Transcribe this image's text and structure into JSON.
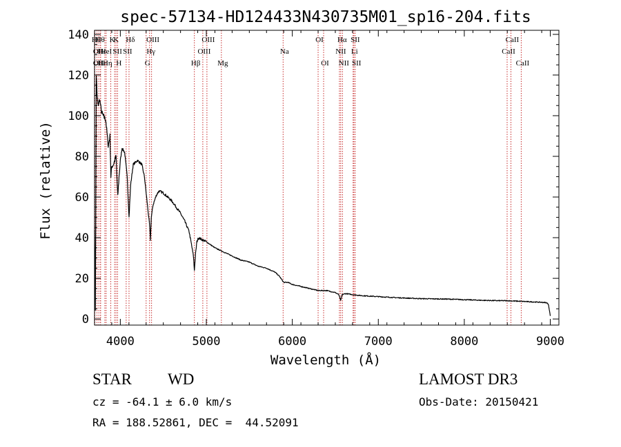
{
  "chart_data": {
    "type": "line",
    "title": "spec-57134-HD124433N430735M01_sp16-204.fits",
    "xlabel": "Wavelength (Å)",
    "ylabel": "Flux (relative)",
    "xlim": [
      3700,
      9100
    ],
    "ylim": [
      -3,
      142
    ],
    "x_ticks": [
      4000,
      5000,
      6000,
      7000,
      8000,
      9000
    ],
    "x_tick_labels": [
      "4000",
      "5000",
      "6000",
      "7000",
      "8000",
      "9000"
    ],
    "y_ticks": [
      0,
      20,
      40,
      60,
      80,
      100,
      120,
      140
    ],
    "y_tick_labels": [
      "0",
      "20",
      "40",
      "60",
      "80",
      "100",
      "120",
      "140"
    ],
    "series": [
      {
        "name": "spectrum",
        "x": [
          3700,
          3710,
          3720,
          3730,
          3740,
          3760,
          3780,
          3800,
          3830,
          3860,
          3880,
          3890,
          3900,
          3920,
          3950,
          3970,
          3985,
          4000,
          4020,
          4050,
          4080,
          4101,
          4120,
          4150,
          4200,
          4250,
          4280,
          4300,
          4320,
          4340,
          4350,
          4360,
          4380,
          4420,
          4450,
          4500,
          4550,
          4600,
          4650,
          4700,
          4750,
          4800,
          4830,
          4850,
          4861,
          4875,
          4890,
          4910,
          4950,
          5000,
          5100,
          5200,
          5300,
          5400,
          5500,
          5600,
          5700,
          5800,
          5850,
          5900,
          5950,
          6000,
          6100,
          6200,
          6300,
          6400,
          6500,
          6540,
          6563,
          6580,
          6620,
          6700,
          6800,
          7000,
          7200,
          7500,
          7800,
          8000,
          8200,
          8400,
          8500,
          8600,
          8700,
          8800,
          8900,
          8960,
          8980,
          9000
        ],
        "y": [
          45,
          5,
          120,
          110,
          105,
          108,
          102,
          100,
          98,
          85,
          90,
          70,
          75,
          76,
          80,
          60,
          70,
          78,
          84,
          82,
          70,
          50,
          66,
          76,
          78,
          76,
          70,
          62,
          54,
          46,
          39,
          50,
          56,
          61,
          63,
          62,
          60,
          58,
          55,
          52,
          48,
          43,
          36,
          31,
          24,
          32,
          38,
          40,
          39,
          38,
          35,
          33,
          31,
          29,
          28,
          26,
          25,
          23,
          21,
          18,
          18,
          17,
          16,
          15,
          14,
          14,
          13,
          12,
          9,
          12,
          12.5,
          12,
          11.5,
          11,
          10.5,
          10,
          9.8,
          9.5,
          9.2,
          9,
          9,
          8.8,
          8.6,
          8.4,
          8.2,
          8,
          7,
          1.5
        ]
      }
    ],
    "line_markers": {
      "top": [
        {
          "w": 3704,
          "row": 0,
          "label": "Hθ"
        },
        {
          "w": 3728,
          "row": 1,
          "label": "OII"
        },
        {
          "w": 3728,
          "row": 2,
          "label": "OII"
        },
        {
          "w": 3750,
          "row": 0,
          "label": "Hθ"
        },
        {
          "w": 3770,
          "row": 1,
          "label": "Hε"
        },
        {
          "w": 3770,
          "row": 2,
          "label": "Hε"
        },
        {
          "w": 3820,
          "row": 1,
          "label": "HeI"
        },
        {
          "w": 3835,
          "row": 2,
          "label": "Hη"
        },
        {
          "w": 3889,
          "row": 0,
          "label": "K"
        },
        {
          "w": 3934,
          "row": 0,
          "label": "K"
        },
        {
          "w": 3950,
          "row": 1,
          "label": "SII"
        },
        {
          "w": 3968,
          "row": 2,
          "label": "H"
        },
        {
          "w": 4068,
          "row": 1,
          "label": "SII"
        },
        {
          "w": 4101,
          "row": 0,
          "label": "Hδ"
        },
        {
          "w": 4300,
          "row": 2,
          "label": "G"
        },
        {
          "w": 4340,
          "row": 1,
          "label": "Hγ"
        },
        {
          "w": 4363,
          "row": 0,
          "label": "OIII"
        },
        {
          "w": 4861,
          "row": 2,
          "label": "Hβ"
        },
        {
          "w": 4959,
          "row": 1,
          "label": "OIII"
        },
        {
          "w": 5007,
          "row": 0,
          "label": "OIII"
        },
        {
          "w": 5175,
          "row": 2,
          "label": "Mg"
        },
        {
          "w": 5893,
          "row": 1,
          "label": "Na"
        },
        {
          "w": 6300,
          "row": 0,
          "label": "OI"
        },
        {
          "w": 6364,
          "row": 2,
          "label": "OI"
        },
        {
          "w": 6548,
          "row": 1,
          "label": "NII"
        },
        {
          "w": 6563,
          "row": 0,
          "label": "Hα"
        },
        {
          "w": 6583,
          "row": 2,
          "label": "NII"
        },
        {
          "w": 6707,
          "row": 1,
          "label": "Li"
        },
        {
          "w": 6716,
          "row": 0,
          "label": "SII"
        },
        {
          "w": 6731,
          "row": 2,
          "label": "SII"
        },
        {
          "w": 8498,
          "row": 1,
          "label": "CaII"
        },
        {
          "w": 8542,
          "row": 0,
          "label": "CaII"
        },
        {
          "w": 8662,
          "row": 2,
          "label": "CaII"
        }
      ]
    }
  },
  "info": {
    "class": "STAR",
    "subclass": "WD",
    "survey": "LAMOST DR3",
    "cz": "cz = -64.1 ± 6.0 km/s",
    "obs_date": "Obs-Date: 20150421",
    "coords": "RA = 188.52861, DEC =  44.52091"
  }
}
